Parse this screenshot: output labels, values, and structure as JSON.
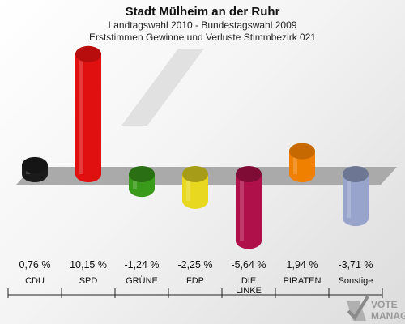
{
  "chart_data": {
    "type": "bar",
    "title": "Stadt Mülheim an der Ruhr",
    "subtitle_line1": "Landtagswahl 2010 - Bundestagswahl 2009",
    "subtitle_line2": "Erststimmen Gewinne und Verluste Stimmbezirk 021",
    "categories": [
      "CDU",
      "SPD",
      "GRÜNE",
      "FDP",
      "DIE LINKE",
      "PIRATEN",
      "Sonstige"
    ],
    "category_lines": [
      [
        "CDU"
      ],
      [
        "SPD"
      ],
      [
        "GRÜNE"
      ],
      [
        "FDP"
      ],
      [
        "DIE",
        "LINKE"
      ],
      [
        "PIRATEN"
      ],
      [
        "Sonstige"
      ]
    ],
    "values": [
      0.76,
      10.15,
      -1.24,
      -2.25,
      -5.64,
      1.94,
      -3.71
    ],
    "value_labels": [
      "0,76 %",
      "10,15 %",
      "-1,24 %",
      "-2,25 %",
      "-5,64 %",
      "1,94 %",
      "-3,71 %"
    ],
    "colors": [
      "#1a1a1a",
      "#e01010",
      "#3a9a1a",
      "#e8d820",
      "#b0104a",
      "#f08000",
      "#98a4cc"
    ],
    "ylim": [
      -5.64,
      10.15
    ],
    "grid": false,
    "legend": "none"
  },
  "logo": {
    "line1": "VOTE",
    "line2": "MANAGER"
  }
}
